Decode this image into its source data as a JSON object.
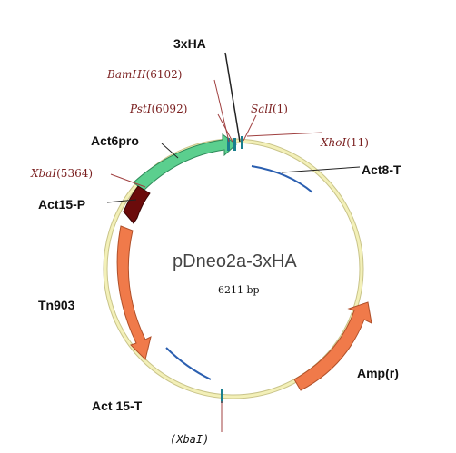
{
  "plasmid": {
    "name": "pDneo2a-3xHA",
    "size": "6211 bp"
  },
  "features": [
    {
      "id": "act6pro",
      "label": "Act6pro",
      "color": "#5bcf8e"
    },
    {
      "id": "act15p",
      "label": "Act15-P",
      "color": "#6b0b0b"
    },
    {
      "id": "tn903",
      "label": "Tn903",
      "color": "#f07a4a"
    },
    {
      "id": "ampr",
      "label": "Amp(r)",
      "color": "#f07a4a"
    },
    {
      "id": "act8t",
      "label": "Act8-T",
      "color": "#2b5fb0"
    },
    {
      "id": "act15t",
      "label": "Act 15-T",
      "color": "#2b5fb0"
    },
    {
      "id": "tag",
      "label": "3xHA",
      "color": "#111111"
    }
  ],
  "sites": {
    "bamhi": {
      "enzyme": "BamHI",
      "pos": "(6102)"
    },
    "psti": {
      "enzyme": "PstI",
      "pos": "(6092)"
    },
    "sali": {
      "enzyme": "SalI",
      "pos": "(1)"
    },
    "xhoi": {
      "enzyme": "XhoI",
      "pos": "(11)"
    },
    "xbai": {
      "enzyme": "XbaI",
      "pos": "(5364)"
    },
    "xbai_bottom": {
      "text": "(XbaI)"
    }
  },
  "colors": {
    "backbone": "#f3f0b8",
    "backbone_edge": "#c9c48a",
    "site_line_red": "#a04040",
    "site_line_dark": "#222222",
    "teal_marker": "#1a7f8e"
  }
}
